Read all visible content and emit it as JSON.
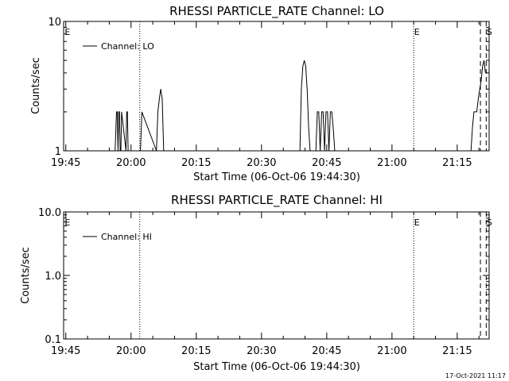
{
  "chart_data": [
    {
      "type": "line",
      "title": "RHESSI PARTICLE_RATE Channel: LO",
      "xlabel": "Start Time (06-Oct-06 19:44:30)",
      "ylabel": "Counts/sec",
      "yscale": "log",
      "ylim": [
        1,
        10
      ],
      "yticks": [
        {
          "v": 1,
          "label": "1"
        },
        {
          "v": 10,
          "label": "10"
        }
      ],
      "xlim": [
        "19:44:30",
        "21:22:20"
      ],
      "xticks": [
        "19:45",
        "20:00",
        "20:15",
        "20:30",
        "20:45",
        "21:00",
        "21:15"
      ],
      "legend": {
        "label": "Channel: LO",
        "placement": "top-left"
      },
      "series": [
        {
          "name": "Channel: LO",
          "x": [
            "19:56:20",
            "19:56:40",
            "19:56:50",
            "19:57:00",
            "19:57:10",
            "19:57:20",
            "19:57:30",
            "19:57:40",
            "19:57:50",
            "19:58:50",
            "19:59:00",
            "19:59:10",
            "19:59:20",
            "20:02:10",
            "20:02:30",
            "20:05:50",
            "20:06:10",
            "20:06:30",
            "20:06:50",
            "20:07:10",
            "20:07:30",
            "20:38:50",
            "20:39:10",
            "20:39:30",
            "20:39:50",
            "20:40:10",
            "20:40:30",
            "20:40:50",
            "20:41:10",
            "20:42:30",
            "20:42:50",
            "20:43:10",
            "20:43:30",
            "20:43:50",
            "20:44:10",
            "20:44:30",
            "20:44:50",
            "20:45:10",
            "20:45:30",
            "20:45:50",
            "20:46:10",
            "20:46:30",
            "20:46:50",
            "21:18:10",
            "21:18:30",
            "21:18:50",
            "21:19:10",
            "21:19:30",
            "21:19:50",
            "21:20:10",
            "21:20:30",
            "21:20:50",
            "21:21:10",
            "21:21:30"
          ],
          "y": [
            1,
            2,
            2,
            1,
            2,
            2,
            1,
            1,
            2,
            1,
            2,
            2,
            1,
            1,
            2,
            1,
            2,
            2.5,
            3,
            2.5,
            1,
            1,
            3,
            4.5,
            5,
            4.5,
            3,
            1.5,
            1,
            1,
            2,
            2,
            1,
            2,
            2,
            1,
            2,
            2,
            1,
            2,
            2,
            1.5,
            1,
            1,
            1.5,
            2,
            2,
            2,
            2.5,
            3,
            3.5,
            4.5,
            5,
            4
          ]
        }
      ],
      "annotations": [
        {
          "label": "E",
          "time": "19:44:40",
          "style": "none"
        },
        {
          "label": "",
          "time": "20:02:00",
          "style": "dotted"
        },
        {
          "label": "E",
          "time": "21:05:00",
          "style": "dotted"
        },
        {
          "label": "",
          "time": "21:20:20",
          "style": "dashed"
        },
        {
          "label": "S",
          "time": "21:21:40",
          "style": "dashed"
        }
      ]
    },
    {
      "type": "line",
      "title": "RHESSI PARTICLE_RATE Channel: HI",
      "xlabel": "Start Time (06-Oct-06 19:44:30)",
      "ylabel": "Counts/sec",
      "yscale": "log",
      "ylim": [
        0.1,
        10
      ],
      "yticks": [
        {
          "v": 0.1,
          "label": "0.1"
        },
        {
          "v": 1,
          "label": "1.0"
        },
        {
          "v": 10,
          "label": "10.0"
        }
      ],
      "xlim": [
        "19:44:30",
        "21:22:20"
      ],
      "xticks": [
        "19:45",
        "20:00",
        "20:15",
        "20:30",
        "20:45",
        "21:00",
        "21:15"
      ],
      "legend": {
        "label": "Channel: HI",
        "placement": "top-left"
      },
      "series": [
        {
          "name": "Channel: HI",
          "x": [],
          "y": []
        }
      ],
      "annotations": [
        {
          "label": "E",
          "time": "19:44:40",
          "style": "none"
        },
        {
          "label": "",
          "time": "20:02:00",
          "style": "dotted"
        },
        {
          "label": "E",
          "time": "21:05:00",
          "style": "dotted"
        },
        {
          "label": "",
          "time": "21:20:20",
          "style": "dashed"
        },
        {
          "label": "S",
          "time": "21:21:40",
          "style": "dashed"
        }
      ]
    }
  ],
  "footer": {
    "timestamp": "17-Oct-2021 11:17"
  }
}
